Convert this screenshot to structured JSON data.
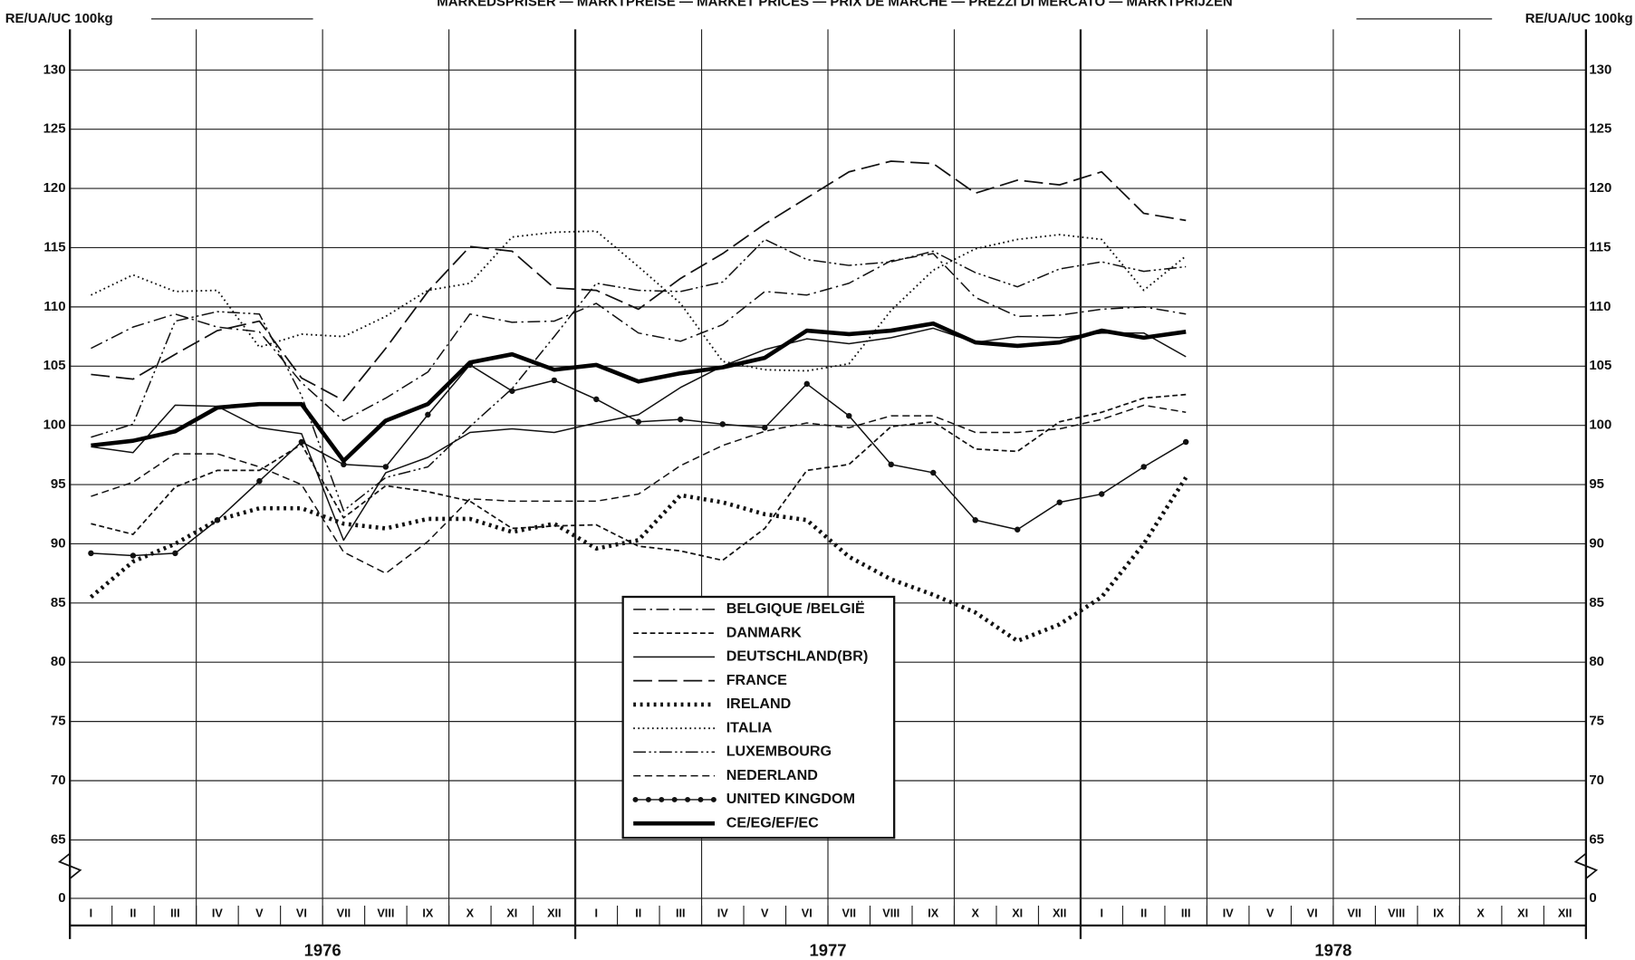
{
  "chart_data": {
    "type": "line",
    "title": "MARKEDSPRISER — MARKTPREISE — MARKET PRICES — PRIX DE MARCHÉ — PREZZI DI MERCATO — MARKTPRIJZEN",
    "y_label": "RE/UA/UC 100kg",
    "y2_label": "RE/UA/UC 100kg",
    "years": [
      "1976",
      "1977",
      "1978"
    ],
    "categories": [
      "I",
      "II",
      "III",
      "IV",
      "V",
      "VI",
      "VII",
      "VIII",
      "IX",
      "X",
      "XI",
      "XII",
      "I",
      "II",
      "III",
      "IV",
      "V",
      "VI",
      "VII",
      "VIII",
      "IX",
      "X",
      "XI",
      "XII",
      "I",
      "II",
      "III",
      "IV",
      "V",
      "VI",
      "VII",
      "VIII",
      "IX",
      "X",
      "XI",
      "XII"
    ],
    "ylim": [
      65,
      130
    ],
    "axis_break": true,
    "yticks": [
      0,
      65,
      70,
      75,
      80,
      85,
      90,
      95,
      100,
      105,
      110,
      115,
      120,
      125,
      130
    ],
    "grid": true,
    "series": [
      {
        "name": "BELGIQUE /BELGIË",
        "color": "#111",
        "style": "dash-dot",
        "values": [
          106.5,
          108.3,
          109.4,
          108.3,
          107.9,
          103.6,
          100.4,
          102.3,
          104.5,
          109.4,
          108.7,
          108.8,
          110.3,
          107.8,
          107.1,
          108.5,
          111.3,
          111.0,
          112.0,
          113.9,
          114.5,
          110.8,
          109.2,
          109.3,
          109.8,
          110.0,
          109.4,
          null,
          null,
          null,
          null,
          null,
          null,
          null,
          null,
          null
        ]
      },
      {
        "name": "DANMARK",
        "color": "#111",
        "style": "chevron",
        "values": [
          91.7,
          90.8,
          94.8,
          96.2,
          96.2,
          98.4,
          92.2,
          94.9,
          94.4,
          93.6,
          91.3,
          91.5,
          91.6,
          89.8,
          89.4,
          88.6,
          91.3,
          96.2,
          96.7,
          99.9,
          100.3,
          98.0,
          97.8,
          100.3,
          101.1,
          102.3,
          102.6,
          null,
          null,
          null,
          null,
          null,
          null,
          null,
          null,
          null
        ]
      },
      {
        "name": "DEUTSCHLAND(BR)",
        "color": "#111",
        "style": "solid",
        "values": [
          98.2,
          97.7,
          101.7,
          101.6,
          99.8,
          99.3,
          90.3,
          96.0,
          97.3,
          99.4,
          99.7,
          99.4,
          100.2,
          100.9,
          103.2,
          105.0,
          106.4,
          107.3,
          106.9,
          107.4,
          108.2,
          107.0,
          107.5,
          107.4,
          107.8,
          107.8,
          105.8,
          null,
          null,
          null,
          null,
          null,
          null,
          null,
          null,
          null
        ]
      },
      {
        "name": "FRANCE",
        "color": "#111",
        "style": "long-dash",
        "values": [
          104.3,
          103.9,
          106.0,
          108.0,
          108.8,
          104.0,
          102.1,
          106.5,
          111.3,
          115.1,
          114.7,
          111.6,
          111.4,
          109.8,
          112.4,
          114.5,
          117.0,
          119.2,
          121.4,
          122.3,
          122.1,
          119.6,
          120.7,
          120.3,
          121.4,
          117.9,
          117.3,
          null,
          null,
          null,
          null,
          null,
          null,
          null,
          null,
          null
        ]
      },
      {
        "name": "IRELAND",
        "color": "#111",
        "style": "plus",
        "values": [
          85.5,
          88.5,
          90.0,
          92.0,
          93.0,
          93.0,
          91.7,
          91.3,
          92.1,
          92.1,
          91.0,
          91.7,
          89.6,
          90.3,
          94.1,
          93.5,
          92.5,
          92.0,
          88.9,
          87.0,
          85.7,
          84.2,
          81.8,
          83.2,
          85.5,
          90.0,
          95.6,
          null,
          null,
          null,
          null,
          null,
          null,
          null,
          null,
          null
        ]
      },
      {
        "name": "ITALIA",
        "color": "#111",
        "style": "dotted",
        "values": [
          111.0,
          112.7,
          111.3,
          111.4,
          106.6,
          107.7,
          107.5,
          109.2,
          111.4,
          112.0,
          115.9,
          116.3,
          116.4,
          113.4,
          110.3,
          105.4,
          104.7,
          104.6,
          105.2,
          109.7,
          113.1,
          114.9,
          115.7,
          116.1,
          115.7,
          111.4,
          114.3,
          null,
          null,
          null,
          null,
          null,
          null,
          null,
          null,
          null
        ]
      },
      {
        "name": "LUXEMBOURG",
        "color": "#111",
        "style": "dash-dot-dot",
        "values": [
          99.0,
          100.1,
          108.8,
          109.6,
          109.4,
          102.5,
          92.8,
          95.6,
          96.5,
          99.9,
          103.1,
          107.5,
          112.0,
          111.4,
          111.3,
          112.1,
          115.7,
          114.0,
          113.5,
          113.8,
          114.7,
          112.9,
          111.7,
          113.2,
          113.8,
          113.0,
          113.4,
          null,
          null,
          null,
          null,
          null,
          null,
          null,
          null,
          null
        ]
      },
      {
        "name": "NEDERLAND",
        "color": "#111",
        "style": "short-dash",
        "values": [
          94.0,
          95.2,
          97.6,
          97.6,
          96.5,
          95.0,
          89.3,
          87.5,
          90.2,
          93.8,
          93.6,
          93.6,
          93.6,
          94.2,
          96.6,
          98.3,
          99.5,
          100.2,
          99.8,
          100.8,
          100.8,
          99.4,
          99.4,
          99.7,
          100.5,
          101.7,
          101.1,
          null,
          null,
          null,
          null,
          null,
          null,
          null,
          null,
          null
        ]
      },
      {
        "name": "UNITED KINGDOM",
        "color": "#111",
        "style": "dots",
        "values": [
          89.2,
          89.0,
          89.2,
          92.0,
          95.3,
          98.6,
          96.7,
          96.5,
          100.9,
          105.1,
          102.9,
          103.8,
          102.2,
          100.3,
          100.5,
          100.1,
          99.8,
          103.5,
          100.8,
          96.7,
          96.0,
          92.0,
          91.2,
          93.5,
          94.2,
          96.5,
          98.6,
          null,
          null,
          null,
          null,
          null,
          null,
          null,
          null,
          null
        ]
      },
      {
        "name": "CE/EG/EF/EC",
        "color": "#000",
        "style": "thick",
        "values": [
          98.3,
          98.7,
          99.5,
          101.5,
          101.8,
          101.8,
          97.0,
          100.4,
          101.8,
          105.3,
          106.0,
          104.7,
          105.1,
          103.7,
          104.4,
          104.9,
          105.7,
          108.0,
          107.7,
          108.0,
          108.6,
          107.0,
          106.7,
          107.0,
          108.0,
          107.4,
          107.9,
          null,
          null,
          null,
          null,
          null,
          null,
          null,
          null,
          null
        ]
      }
    ]
  }
}
